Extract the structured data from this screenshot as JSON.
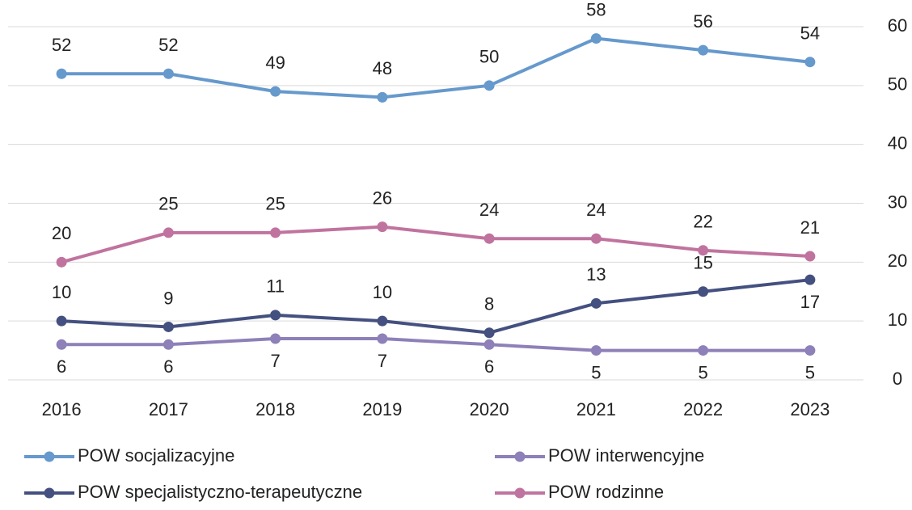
{
  "chart_data": {
    "type": "line",
    "categories": [
      "2016",
      "2017",
      "2018",
      "2019",
      "2020",
      "2021",
      "2022",
      "2023"
    ],
    "series": [
      {
        "name": "POW socjalizacyjne",
        "color": "#6699cc",
        "values": [
          52,
          52,
          49,
          48,
          50,
          58,
          56,
          54
        ]
      },
      {
        "name": "POW interwencyjne",
        "color": "#8e80b8",
        "values": [
          6,
          6,
          7,
          7,
          6,
          5,
          5,
          5
        ]
      },
      {
        "name": "POW specjalistyczno-terapeutyczne",
        "color": "#44507f",
        "values": [
          10,
          9,
          11,
          10,
          8,
          13,
          15,
          17
        ]
      },
      {
        "name": "POW rodzinne",
        "color": "#c0739e",
        "values": [
          20,
          25,
          25,
          26,
          24,
          24,
          22,
          21
        ]
      }
    ],
    "ylim": [
      0,
      60
    ],
    "yticks": [
      0,
      10,
      20,
      30,
      40,
      50,
      60
    ],
    "y_axis_side": "right",
    "grid": true,
    "legend": "bottom"
  }
}
